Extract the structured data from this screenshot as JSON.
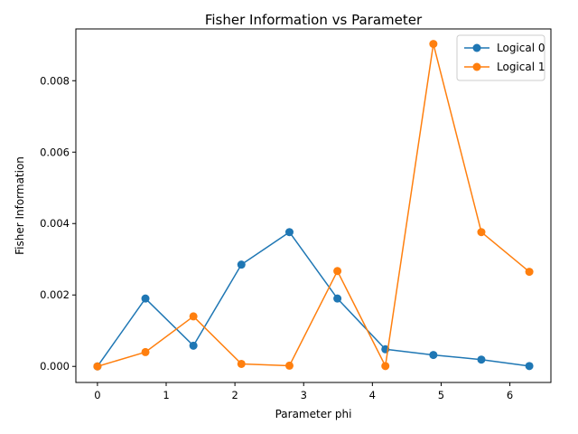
{
  "chart_data": {
    "type": "line",
    "title": "Fisher Information vs Parameter",
    "xlabel": "Parameter phi",
    "ylabel": "Fisher Information",
    "xlim": [
      -0.314,
      6.597
    ],
    "ylim": [
      -0.00045,
      0.00945
    ],
    "xticks": [
      0,
      1,
      2,
      3,
      4,
      5,
      6
    ],
    "xtick_labels": [
      "0",
      "1",
      "2",
      "3",
      "4",
      "5",
      "6"
    ],
    "yticks": [
      0,
      0.002,
      0.004,
      0.006,
      0.008
    ],
    "ytick_labels": [
      "0.000",
      "0.002",
      "0.004",
      "0.006",
      "0.008"
    ],
    "grid": false,
    "legend_position": "top-right",
    "x": [
      0,
      0.698,
      1.396,
      2.094,
      2.793,
      3.491,
      4.189,
      4.887,
      5.585,
      6.283
    ],
    "series": [
      {
        "name": "Logical 0",
        "color": "#1f77b4",
        "values": [
          0.0,
          0.0019,
          0.00058,
          0.00285,
          0.00376,
          0.0019,
          0.00048,
          0.00032,
          0.00019,
          1e-05
        ]
      },
      {
        "name": "Logical 1",
        "color": "#ff7f0e",
        "values": [
          0.0,
          0.0004,
          0.0014,
          7e-05,
          2e-05,
          0.00267,
          1e-05,
          0.00903,
          0.00376,
          0.00265
        ]
      }
    ]
  }
}
